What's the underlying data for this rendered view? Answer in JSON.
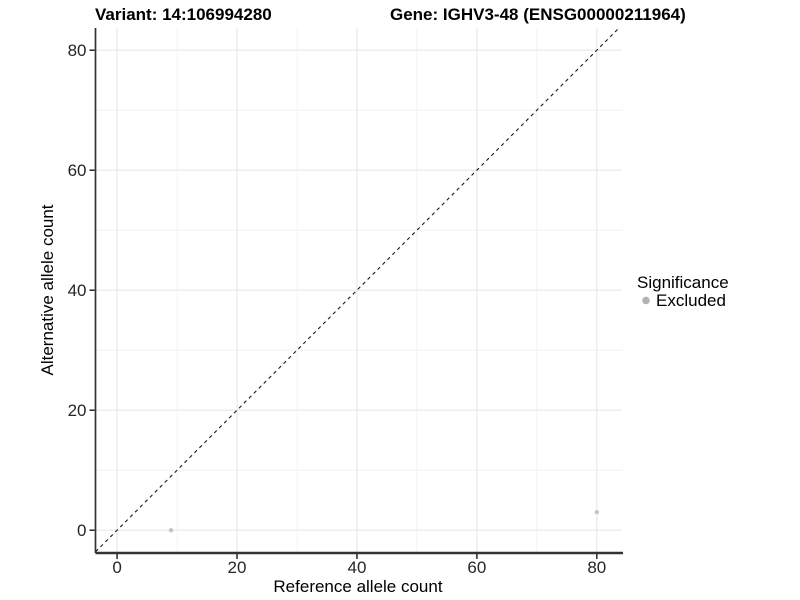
{
  "chart_data": {
    "type": "scatter",
    "variant_title": "Variant: 14:106994280",
    "gene_title": "Gene: IGHV3-48 (ENSG00000211964)",
    "xlabel": "Reference allele count",
    "ylabel": "Alternative allele count",
    "xlim": [
      -3.6,
      84.2
    ],
    "ylim": [
      -3.8,
      83.7
    ],
    "x_ticks": [
      0,
      20,
      40,
      60,
      80
    ],
    "y_ticks": [
      0,
      20,
      40,
      60,
      80
    ],
    "x_minor_ticks": [
      10,
      30,
      50,
      70
    ],
    "y_minor_ticks": [
      10,
      30,
      50,
      70
    ],
    "grid": "major and minor, light gray on white",
    "identity_line": {
      "slope": 1,
      "intercept": 0,
      "style": "dashed",
      "color": "#1a1a1a"
    },
    "series": [
      {
        "name": "Excluded",
        "color": "#c5c5c5",
        "points": [
          {
            "x": 9,
            "y": 0
          },
          {
            "x": 80,
            "y": 3
          }
        ]
      }
    ],
    "legend": {
      "title": "Significance",
      "position": "right",
      "items": [
        {
          "label": "Excluded",
          "color": "#b2b2b2"
        }
      ]
    },
    "style": {
      "axis_line_color": "#333333",
      "tick_color": "#333333",
      "grid_major_color": "#e8e8e8",
      "grid_minor_color": "#f4f4f4",
      "background": "#ffffff"
    }
  }
}
